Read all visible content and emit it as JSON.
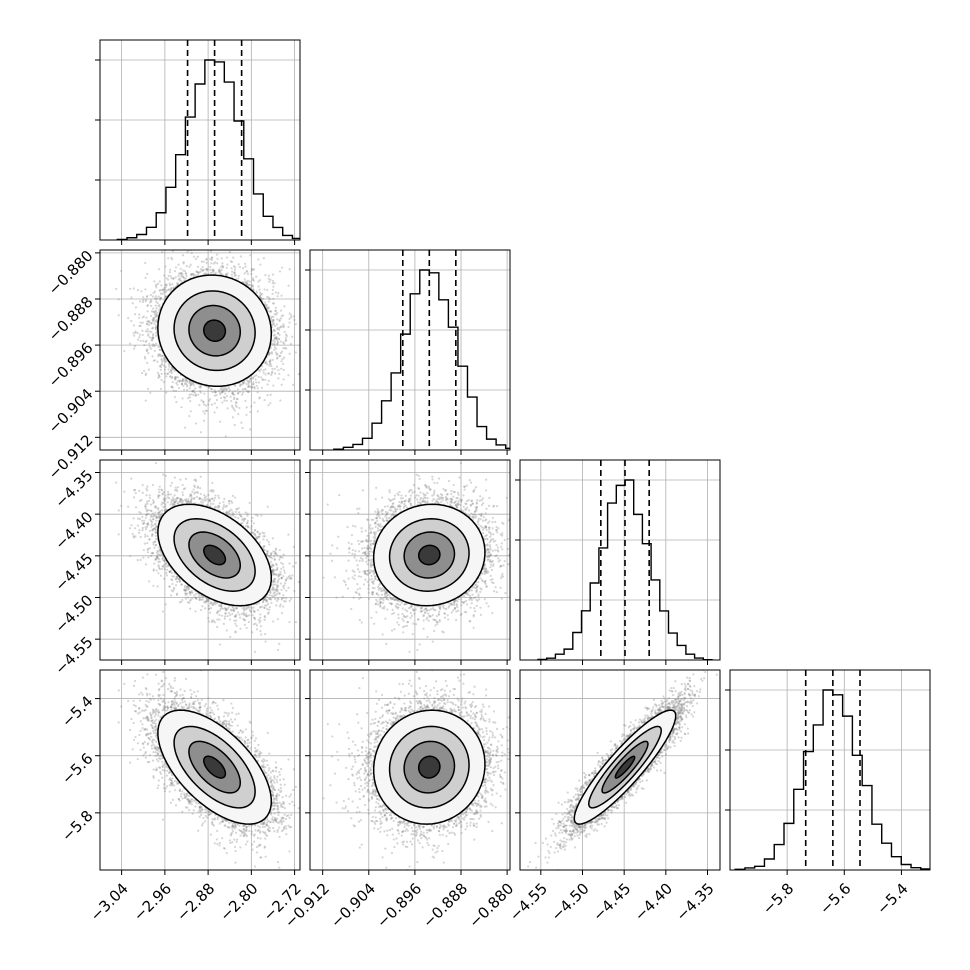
{
  "chart_data": {
    "type": "corner",
    "title": "",
    "grid": true,
    "quantiles": [
      0.16,
      0.5,
      0.84
    ],
    "parameters": [
      {
        "label": "",
        "range": [
          -3.08,
          -2.71
        ],
        "mean": -2.868,
        "std": 0.05,
        "quantile_values": [
          -2.918,
          -2.868,
          -2.818
        ],
        "ticks": [
          -3.04,
          -2.96,
          -2.88,
          -2.8,
          -2.72
        ],
        "tick_labels": [
          "−3.04",
          "−2.96",
          "−2.88",
          "−2.80",
          "−2.72"
        ]
      },
      {
        "label": "",
        "range": [
          -0.9142,
          -0.8795
        ],
        "mean": -0.8935,
        "std": 0.0046,
        "quantile_values": [
          -0.8981,
          -0.8935,
          -0.8889
        ],
        "ticks": [
          -0.912,
          -0.904,
          -0.896,
          -0.888,
          -0.88
        ],
        "tick_labels": [
          "−0.912",
          "−0.904",
          "−0.896",
          "−0.888",
          "−0.880"
        ]
      },
      {
        "label": "",
        "range": [
          -4.575,
          -4.335
        ],
        "mean": -4.449,
        "std": 0.029,
        "quantile_values": [
          -4.478,
          -4.449,
          -4.42
        ],
        "ticks": [
          -4.55,
          -4.5,
          -4.45,
          -4.4,
          -4.35
        ],
        "tick_labels": [
          "−4.55",
          "−4.50",
          "−4.45",
          "−4.40",
          "−4.35"
        ]
      },
      {
        "label": "",
        "range": [
          -6.0,
          -5.3
        ],
        "mean": -5.64,
        "std": 0.095,
        "quantile_values": [
          -5.735,
          -5.64,
          -5.545
        ],
        "ticks": [
          -5.8,
          -5.6,
          -5.4
        ],
        "tick_labels": [
          "−5.8",
          "−5.6",
          "−5.4"
        ]
      }
    ],
    "correlations": {
      "1-0": -0.05,
      "2-0": -0.45,
      "2-1": 0.05,
      "3-0": -0.6,
      "3-1": 0.05,
      "3-2": 0.9
    }
  }
}
